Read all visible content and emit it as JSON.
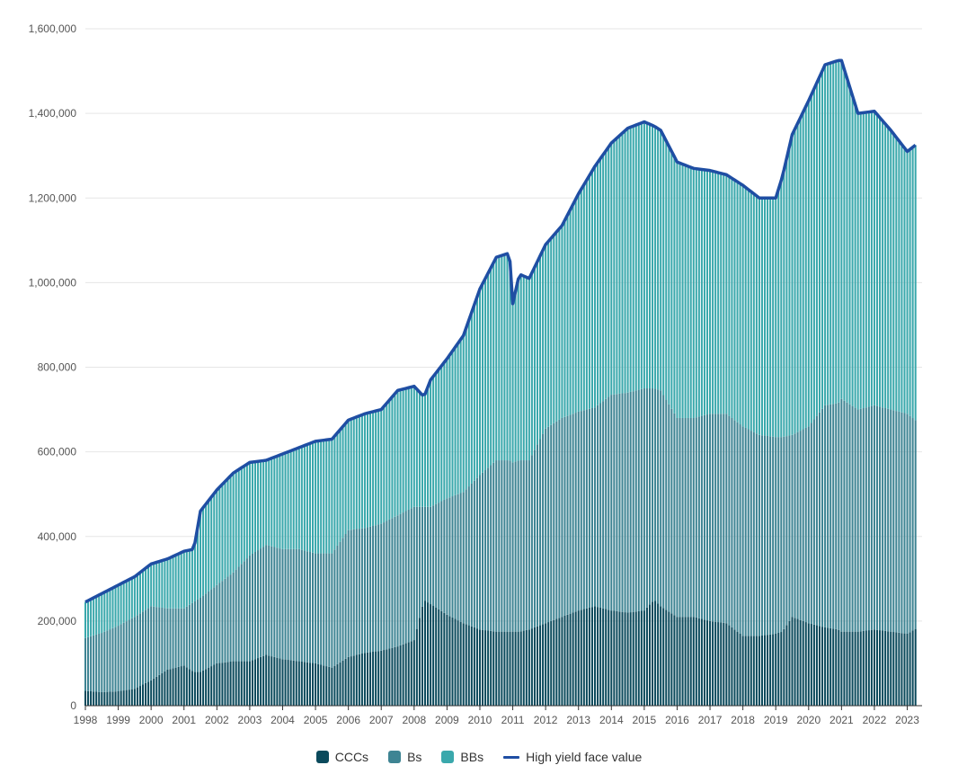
{
  "chart_data": {
    "type": "bar",
    "stacked": true,
    "title": "",
    "xlabel": "",
    "ylabel": "",
    "ylim": [
      0,
      1600000
    ],
    "y_ticks": [
      0,
      200000,
      400000,
      600000,
      800000,
      1000000,
      1200000,
      1400000,
      1600000
    ],
    "y_tick_labels": [
      "0",
      "200,000",
      "400,000",
      "600,000",
      "800,000",
      "1,000,000",
      "1,200,000",
      "1,400,000",
      "1,600,000"
    ],
    "x_tick_labels": [
      "1998",
      "1999",
      "2000",
      "2001",
      "2002",
      "2003",
      "2004",
      "2005",
      "2006",
      "2007",
      "2008",
      "2009",
      "2010",
      "2011",
      "2012",
      "2013",
      "2014",
      "2015",
      "2016",
      "2017",
      "2018",
      "2019",
      "2020",
      "2021",
      "2022",
      "2023"
    ],
    "x": [
      1998.0,
      1998.5,
      1999.0,
      1999.5,
      2000.0,
      2000.5,
      2001.0,
      2001.3,
      2001.5,
      2002.0,
      2002.5,
      2003.0,
      2003.5,
      2004.0,
      2004.5,
      2005.0,
      2005.5,
      2006.0,
      2006.5,
      2007.0,
      2007.5,
      2008.0,
      2008.3,
      2008.5,
      2009.0,
      2009.5,
      2010.0,
      2010.5,
      2010.9,
      2011.0,
      2011.2,
      2011.5,
      2012.0,
      2012.5,
      2013.0,
      2013.5,
      2014.0,
      2014.5,
      2015.0,
      2015.3,
      2015.5,
      2016.0,
      2016.5,
      2017.0,
      2017.5,
      2018.0,
      2018.5,
      2019.0,
      2019.2,
      2019.5,
      2020.0,
      2020.5,
      2020.9,
      2021.0,
      2021.5,
      2022.0,
      2022.5,
      2023.0,
      2023.33
    ],
    "series": [
      {
        "name": "CCCs",
        "color": "#0b4a5c",
        "values": [
          35000,
          32000,
          34000,
          40000,
          60000,
          85000,
          95000,
          80000,
          80000,
          100000,
          105000,
          105000,
          120000,
          110000,
          105000,
          100000,
          90000,
          115000,
          125000,
          130000,
          140000,
          155000,
          250000,
          240000,
          215000,
          195000,
          180000,
          175000,
          175000,
          175000,
          175000,
          180000,
          195000,
          210000,
          225000,
          235000,
          225000,
          220000,
          225000,
          250000,
          235000,
          210000,
          210000,
          200000,
          195000,
          165000,
          165000,
          170000,
          175000,
          210000,
          195000,
          185000,
          180000,
          175000,
          175000,
          180000,
          175000,
          170000,
          185000
        ]
      },
      {
        "name": "Bs",
        "color": "#3e8493",
        "values": [
          125000,
          140000,
          155000,
          170000,
          175000,
          145000,
          135000,
          165000,
          175000,
          185000,
          210000,
          250000,
          260000,
          260000,
          265000,
          260000,
          270000,
          300000,
          295000,
          300000,
          310000,
          315000,
          220000,
          230000,
          275000,
          310000,
          365000,
          405000,
          405000,
          400000,
          405000,
          400000,
          460000,
          470000,
          470000,
          470000,
          510000,
          520000,
          525000,
          500000,
          510000,
          470000,
          470000,
          490000,
          495000,
          495000,
          475000,
          465000,
          460000,
          430000,
          465000,
          525000,
          535000,
          550000,
          525000,
          530000,
          525000,
          520000,
          485000
        ]
      },
      {
        "name": "BBs",
        "color": "#3aa8ac",
        "values": [
          85000,
          93000,
          96000,
          95000,
          100000,
          117000,
          135000,
          125000,
          205000,
          225000,
          235000,
          220000,
          200000,
          225000,
          240000,
          265000,
          270000,
          260000,
          270000,
          270000,
          295000,
          285000,
          260000,
          300000,
          330000,
          370000,
          440000,
          480000,
          490000,
          375000,
          440000,
          430000,
          435000,
          455000,
          515000,
          570000,
          595000,
          625000,
          630000,
          620000,
          615000,
          605000,
          590000,
          575000,
          565000,
          570000,
          560000,
          565000,
          615000,
          710000,
          770000,
          805000,
          810000,
          800000,
          700000,
          695000,
          660000,
          620000,
          660000
        ]
      }
    ],
    "line_series": {
      "name": "High yield face value",
      "color": "#1f4ea3",
      "values": [
        245000,
        265000,
        285000,
        305000,
        335000,
        347000,
        365000,
        370000,
        460000,
        510000,
        550000,
        575000,
        580000,
        595000,
        610000,
        625000,
        630000,
        675000,
        690000,
        700000,
        745000,
        755000,
        730000,
        770000,
        820000,
        875000,
        985000,
        1060000,
        1070000,
        950000,
        1020000,
        1010000,
        1090000,
        1135000,
        1210000,
        1275000,
        1330000,
        1365000,
        1380000,
        1370000,
        1360000,
        1285000,
        1270000,
        1265000,
        1255000,
        1230000,
        1200000,
        1200000,
        1250000,
        1350000,
        1430000,
        1515000,
        1525000,
        1525000,
        1400000,
        1405000,
        1360000,
        1310000,
        1330000
      ]
    },
    "legend": {
      "placement": "bottom-center",
      "entries": [
        "CCCs",
        "Bs",
        "BBs",
        "High yield face value"
      ]
    },
    "grid": "horizontal"
  }
}
